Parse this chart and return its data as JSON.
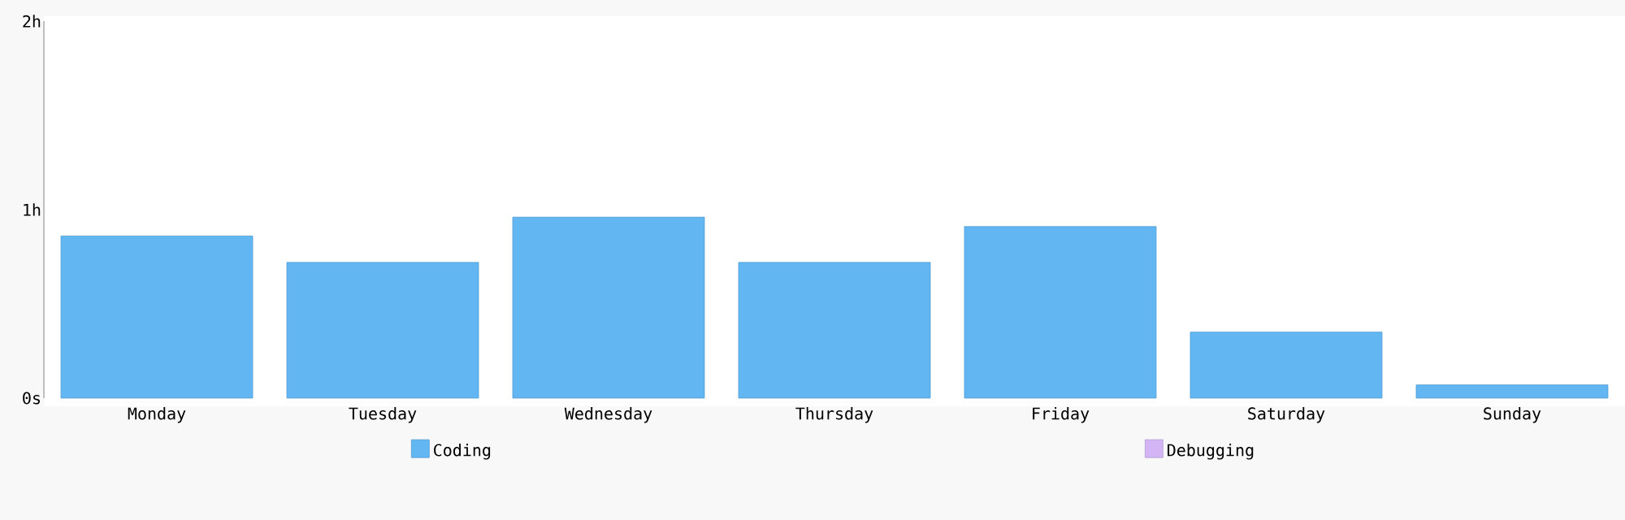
{
  "chart_data": {
    "type": "bar",
    "stacked": true,
    "categories": [
      "Monday",
      "Tuesday",
      "Wednesday",
      "Thursday",
      "Friday",
      "Saturday",
      "Sunday"
    ],
    "series": [
      {
        "name": "Coding",
        "color": "#62b7f3",
        "values": [
          0.86,
          0.72,
          0.96,
          0.72,
          0.91,
          0.35,
          0.07
        ]
      },
      {
        "name": "Debugging",
        "color": "#d3b5f5",
        "values": [
          0,
          0,
          0,
          0,
          0,
          0,
          0
        ]
      }
    ],
    "ylim": [
      0,
      2
    ],
    "yticks": [
      {
        "value": 0,
        "label": "0s"
      },
      {
        "value": 1,
        "label": "1h"
      },
      {
        "value": 2,
        "label": "2h"
      }
    ],
    "grid": false,
    "legend": "bottom"
  }
}
